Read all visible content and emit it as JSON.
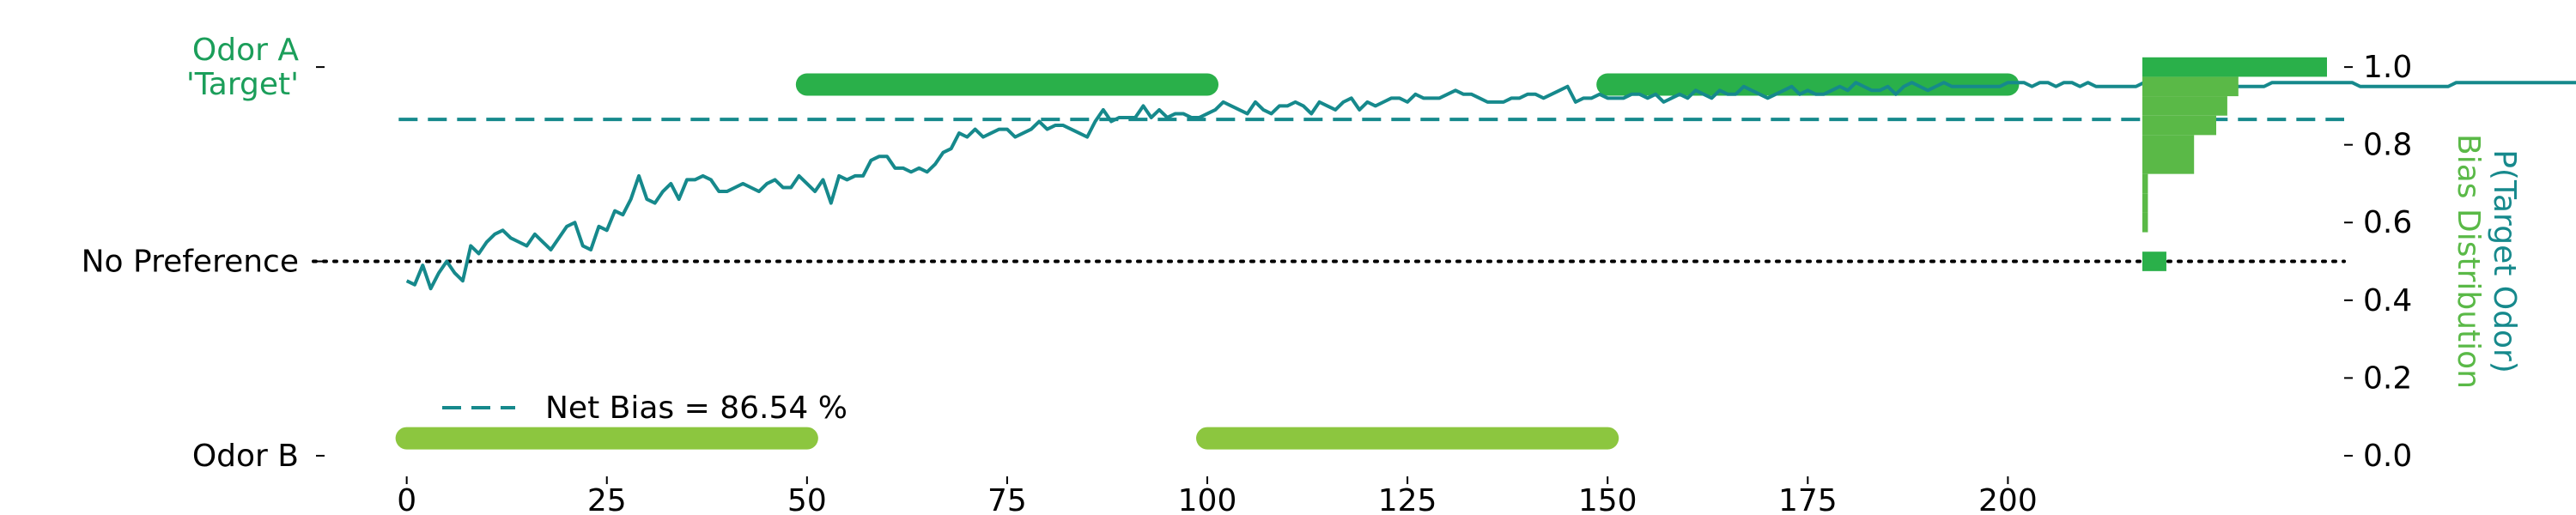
{
  "chart_data": {
    "type": "line",
    "title": "",
    "xlabel": "",
    "ylabel_right": [
      "P(Target Odor)",
      "Bias Distribution"
    ],
    "xlim": [
      -2,
      242
    ],
    "ylim": [
      -0.02,
      1.04
    ],
    "xticks": [
      0,
      25,
      50,
      75,
      100,
      125,
      150,
      175,
      200
    ],
    "yticks_right": [
      0.0,
      0.2,
      0.4,
      0.6,
      0.8,
      1.0
    ],
    "y_category_labels": [
      {
        "value": 1.0,
        "lines": [
          "Odor A",
          "'Target'"
        ],
        "color": "#1b9e5a"
      },
      {
        "value": 0.5,
        "lines": [
          "No Preference"
        ],
        "color": "#000000"
      },
      {
        "value": 0.0,
        "lines": [
          "Odor B"
        ],
        "color": "#000000"
      }
    ],
    "grid": false,
    "legend": {
      "placement": "lower-left",
      "entries": [
        {
          "label": "Net Bias = 86.54 %",
          "color": "#16898c",
          "style": "dashed"
        }
      ]
    },
    "colors": {
      "line": "#16898c",
      "odor_a": "#2ab04a",
      "odor_b": "#8cc63f",
      "hist": "#5ab947",
      "hist_dark": "#2ab04a",
      "odor_a_label": "#1b9e5a"
    },
    "net_bias": 0.8654,
    "no_preference_level": 0.5,
    "odor_a_periods": [
      [
        50,
        100
      ],
      [
        150,
        200
      ]
    ],
    "odor_b_periods": [
      [
        0,
        50
      ],
      [
        100,
        150
      ]
    ],
    "odor_a_level": 0.955,
    "odor_b_level": 0.045,
    "series": [
      {
        "y": [
          0.45,
          0.44,
          0.49,
          0.43,
          0.47,
          0.5,
          0.47,
          0.45,
          0.54,
          0.52,
          0.55,
          0.57,
          0.58,
          0.56,
          0.55,
          0.54,
          0.57,
          0.55,
          0.53,
          0.56,
          0.59,
          0.6,
          0.54,
          0.53,
          0.59,
          0.58,
          0.63,
          0.62,
          0.66,
          0.72,
          0.66,
          0.65,
          0.68,
          0.7,
          0.66,
          0.71,
          0.71,
          0.72,
          0.71,
          0.68,
          0.68,
          0.69,
          0.7,
          0.69,
          0.68,
          0.7,
          0.71,
          0.69,
          0.69,
          0.72,
          0.7,
          0.68,
          0.71,
          0.65,
          0.72,
          0.71,
          0.72,
          0.72,
          0.76,
          0.77,
          0.77,
          0.74,
          0.74,
          0.73,
          0.74,
          0.73,
          0.75,
          0.78,
          0.79,
          0.83,
          0.82,
          0.84,
          0.82,
          0.83,
          0.84,
          0.84,
          0.82,
          0.83,
          0.84,
          0.86,
          0.84,
          0.85,
          0.85,
          0.84,
          0.83,
          0.82,
          0.86,
          0.89,
          0.86,
          0.87,
          0.87,
          0.87,
          0.9,
          0.87,
          0.89,
          0.87,
          0.88,
          0.88,
          0.87,
          0.87,
          0.88,
          0.89,
          0.91,
          0.9,
          0.89,
          0.88,
          0.91,
          0.89,
          0.88,
          0.9,
          0.9,
          0.91,
          0.9,
          0.88,
          0.91,
          0.9,
          0.89,
          0.91,
          0.92,
          0.89,
          0.91,
          0.9,
          0.91,
          0.92,
          0.92,
          0.91,
          0.93,
          0.92,
          0.92,
          0.92,
          0.93,
          0.94,
          0.93,
          0.93,
          0.92,
          0.91,
          0.91,
          0.91,
          0.92,
          0.92,
          0.93,
          0.93,
          0.92,
          0.93,
          0.94,
          0.95,
          0.91,
          0.92,
          0.92,
          0.93,
          0.92,
          0.92,
          0.92,
          0.93,
          0.93,
          0.92,
          0.93,
          0.91,
          0.92,
          0.93,
          0.92,
          0.94,
          0.93,
          0.92,
          0.94,
          0.93,
          0.93,
          0.95,
          0.94,
          0.93,
          0.92,
          0.93,
          0.94,
          0.95,
          0.93,
          0.94,
          0.93,
          0.93,
          0.94,
          0.95,
          0.94,
          0.96,
          0.95,
          0.94,
          0.94,
          0.95,
          0.93,
          0.95,
          0.96,
          0.95,
          0.94,
          0.95,
          0.96,
          0.95,
          0.95,
          0.95,
          0.95,
          0.95,
          0.95,
          0.95,
          0.96,
          0.96,
          0.96,
          0.95,
          0.96,
          0.96,
          0.95,
          0.96,
          0.96,
          0.95,
          0.96,
          0.95,
          0.95,
          0.95,
          0.95,
          0.95,
          0.95,
          0.96,
          0.96,
          0.96,
          0.96,
          0.96,
          0.96,
          0.96,
          0.96,
          0.96,
          0.95,
          0.95,
          0.95,
          0.95,
          0.95,
          0.95,
          0.95,
          0.96,
          0.96,
          0.96,
          0.96,
          0.96,
          0.96,
          0.96,
          0.96,
          0.96,
          0.96,
          0.96,
          0.95,
          0.95,
          0.95,
          0.95,
          0.95,
          0.95,
          0.95,
          0.95,
          0.95,
          0.95,
          0.95,
          0.95,
          0.96,
          0.96,
          0.96,
          0.96,
          0.96,
          0.96,
          0.96,
          0.96,
          0.96,
          0.96,
          0.96,
          0.96,
          0.96,
          0.96,
          0.96,
          0.96,
          0.96,
          0.96,
          0.96,
          0.96,
          0.96,
          0.96,
          0.96,
          0.96
        ]
      }
    ],
    "histogram": {
      "bins": [
        {
          "y0": 0.475,
          "y1": 0.525,
          "value": 0.13
        },
        {
          "y0": 0.575,
          "y1": 0.625,
          "value": 0.03
        },
        {
          "y0": 0.625,
          "y1": 0.675,
          "value": 0.03
        },
        {
          "y0": 0.675,
          "y1": 0.725,
          "value": 0.03
        },
        {
          "y0": 0.725,
          "y1": 0.775,
          "value": 0.28
        },
        {
          "y0": 0.775,
          "y1": 0.825,
          "value": 0.28
        },
        {
          "y0": 0.825,
          "y1": 0.875,
          "value": 0.4
        },
        {
          "y0": 0.875,
          "y1": 0.925,
          "value": 0.46
        },
        {
          "y0": 0.925,
          "y1": 0.975,
          "value": 0.52
        },
        {
          "y0": 0.975,
          "y1": 1.025,
          "value": 1.0
        }
      ]
    }
  }
}
